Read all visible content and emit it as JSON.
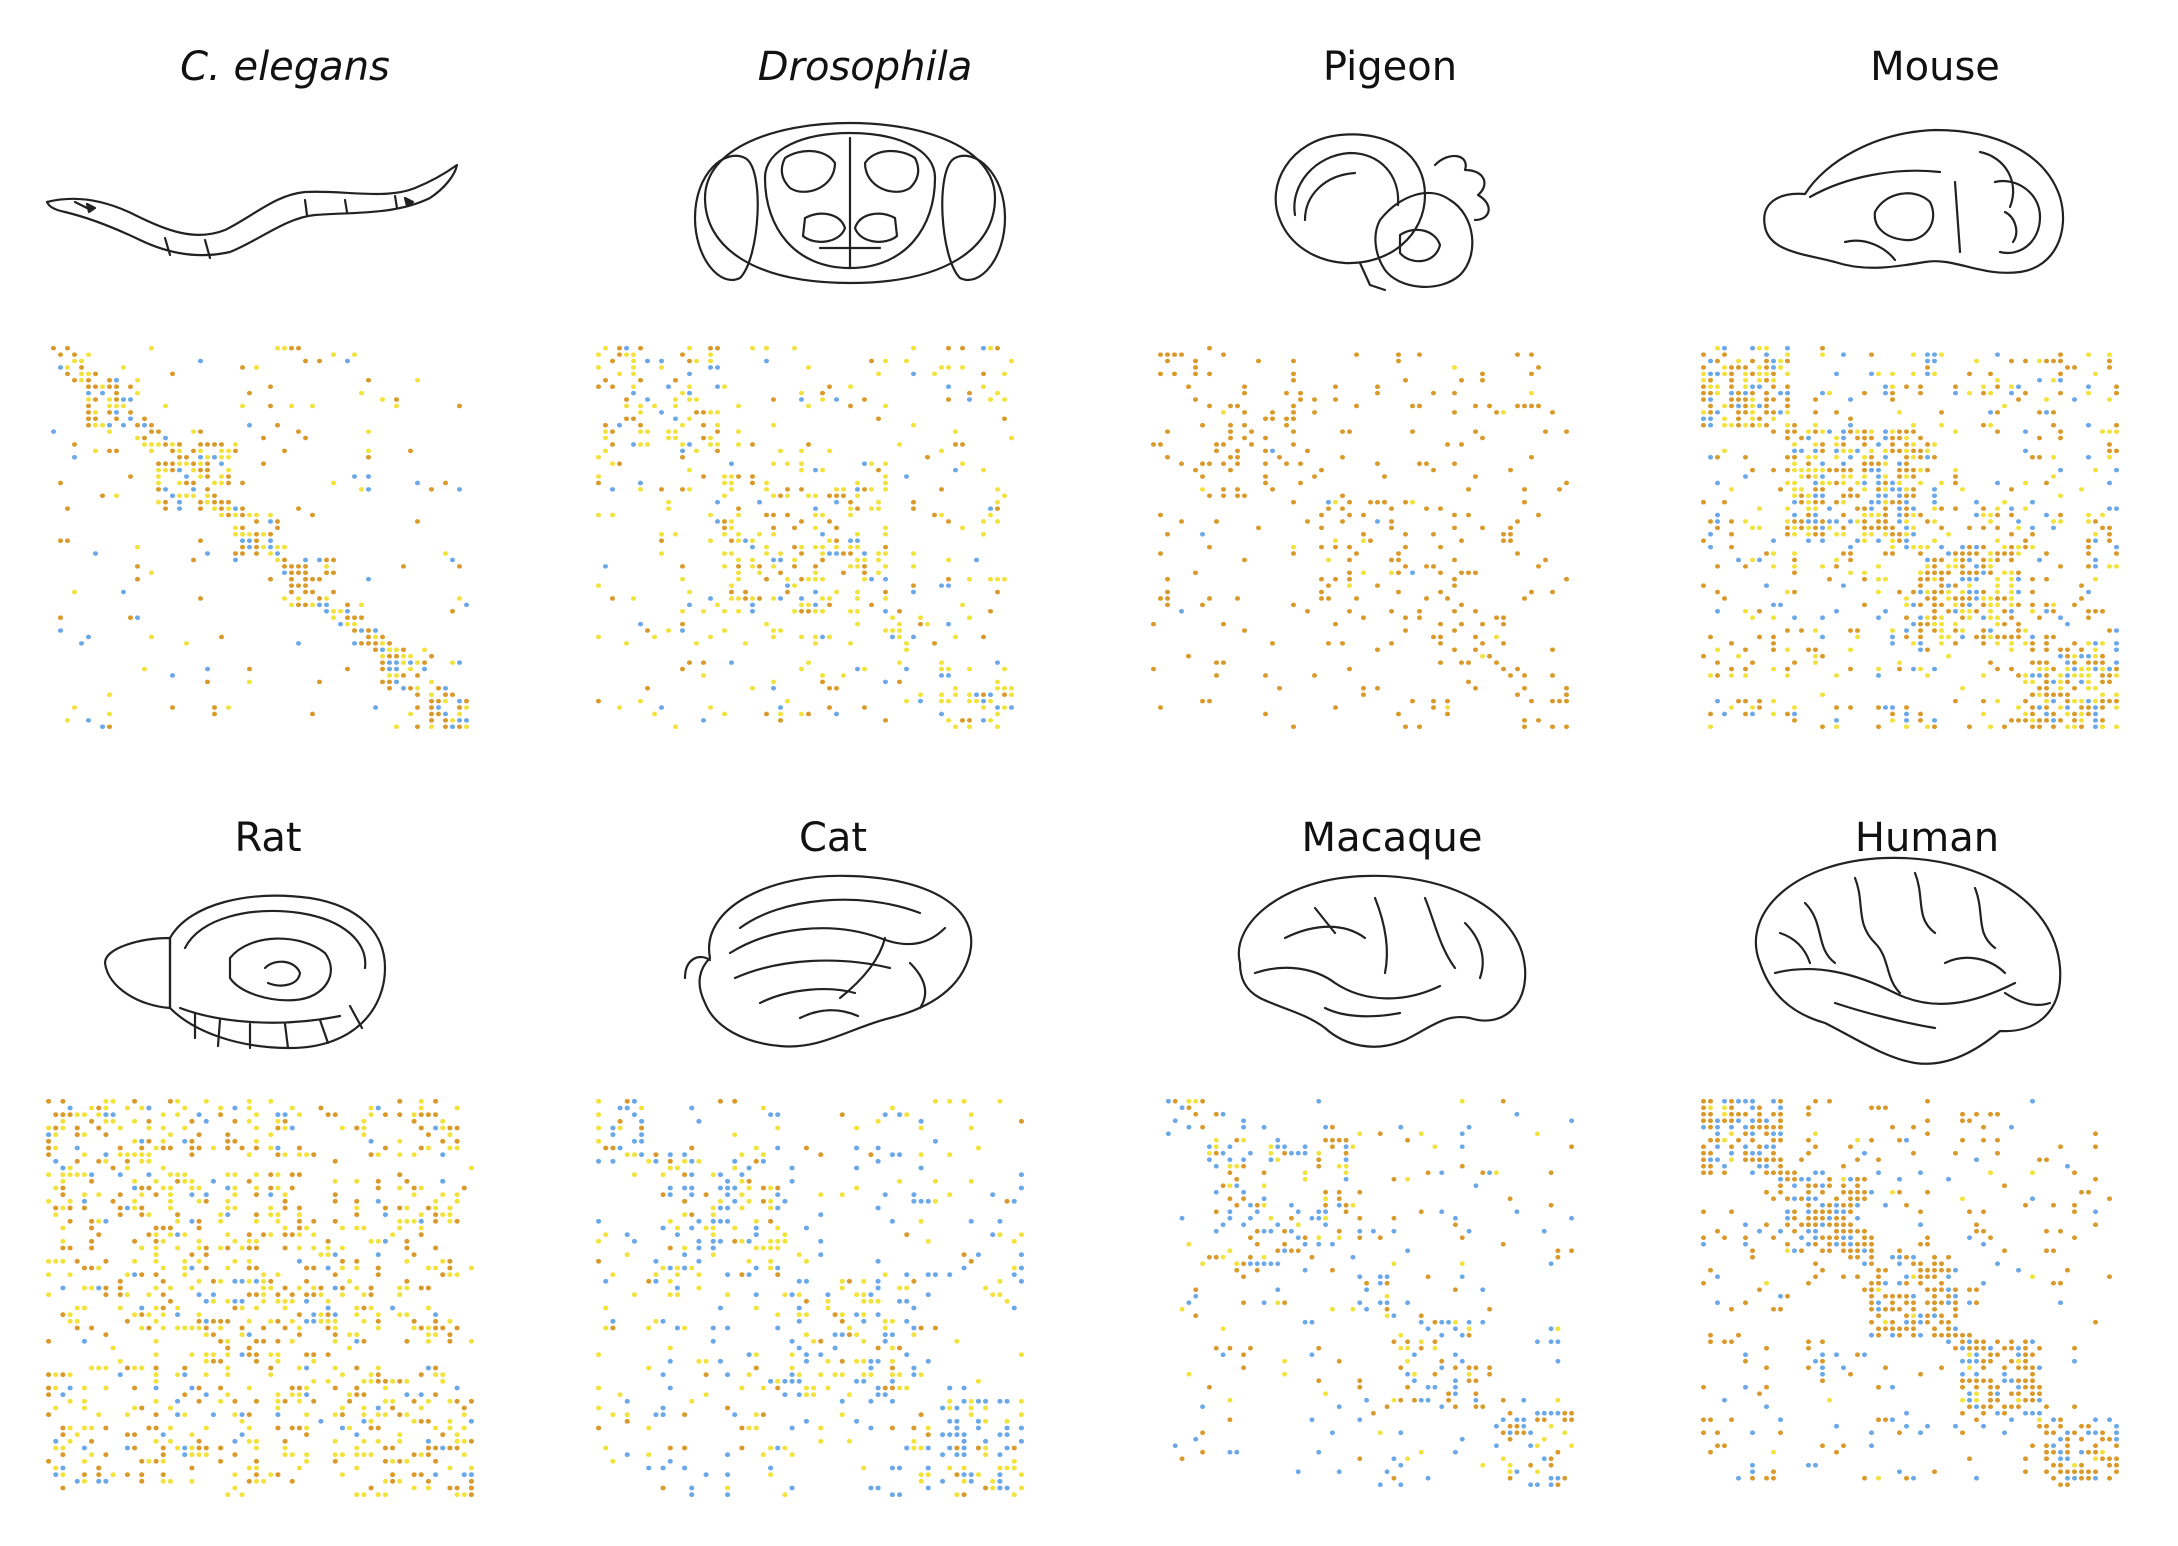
{
  "colors": {
    "orange": "#d99a2b",
    "yellow": "#f2e23c",
    "blue": "#6aa8e8"
  },
  "species": [
    {
      "id": "c-elegans",
      "label": "C. elegans",
      "italic": true,
      "icon": "worm-icon",
      "palette": [
        "orange",
        "yellow",
        "blue"
      ],
      "weights": [
        0.45,
        0.35,
        0.2
      ],
      "modules": [
        [
          0,
          0.06
        ],
        [
          0.08,
          0.14
        ],
        [
          0.25,
          0.18
        ],
        [
          0.43,
          0.12
        ],
        [
          0.55,
          0.14
        ],
        [
          0.71,
          0.07
        ],
        [
          0.78,
          0.12
        ],
        [
          0.9,
          0.1
        ]
      ],
      "in_density": 0.55,
      "bg_density": 0.04,
      "diag": true
    },
    {
      "id": "drosophila",
      "label": "Drosophila",
      "italic": true,
      "icon": "fly-brain-icon",
      "palette": [
        "yellow",
        "orange",
        "blue"
      ],
      "weights": [
        0.55,
        0.25,
        0.2
      ],
      "modules": [
        [
          0,
          0.3
        ],
        [
          0.3,
          0.4
        ],
        [
          0.7,
          0.12
        ],
        [
          0.82,
          0.18
        ]
      ],
      "in_density": 0.3,
      "bg_density": 0.1,
      "diag": false
    },
    {
      "id": "pigeon",
      "label": "Pigeon",
      "italic": false,
      "icon": "pigeon-brain-icon",
      "palette": [
        "orange",
        "yellow",
        "blue"
      ],
      "weights": [
        0.92,
        0.06,
        0.02
      ],
      "modules": [
        [
          0,
          0.12
        ],
        [
          0.12,
          0.28
        ],
        [
          0.4,
          0.3
        ],
        [
          0.7,
          0.15
        ],
        [
          0.88,
          0.12
        ]
      ],
      "in_density": 0.22,
      "bg_density": 0.05,
      "diag": false
    },
    {
      "id": "mouse",
      "label": "Mouse",
      "italic": false,
      "icon": "mouse-brain-icon",
      "palette": [
        "orange",
        "yellow",
        "blue"
      ],
      "weights": [
        0.45,
        0.35,
        0.2
      ],
      "modules": [
        [
          0,
          0.22
        ],
        [
          0.22,
          0.3
        ],
        [
          0.52,
          0.25
        ],
        [
          0.77,
          0.23
        ]
      ],
      "in_density": 0.65,
      "bg_density": 0.18,
      "diag": false
    },
    {
      "id": "rat",
      "label": "Rat",
      "italic": false,
      "icon": "rat-brain-icon",
      "palette": [
        "yellow",
        "orange",
        "blue"
      ],
      "weights": [
        0.5,
        0.38,
        0.12
      ],
      "modules": [
        [
          0,
          0.33
        ],
        [
          0.33,
          0.34
        ],
        [
          0.67,
          0.33
        ]
      ],
      "in_density": 0.35,
      "bg_density": 0.2,
      "diag": false
    },
    {
      "id": "cat",
      "label": "Cat",
      "italic": false,
      "icon": "cat-brain-icon",
      "palette": [
        "blue",
        "yellow",
        "orange"
      ],
      "weights": [
        0.45,
        0.4,
        0.15
      ],
      "modules": [
        [
          0,
          0.15
        ],
        [
          0.15,
          0.3
        ],
        [
          0.45,
          0.3
        ],
        [
          0.75,
          0.25
        ]
      ],
      "in_density": 0.35,
      "bg_density": 0.1,
      "diag": false
    },
    {
      "id": "macaque",
      "label": "Macaque",
      "italic": false,
      "icon": "macaque-brain-icon",
      "palette": [
        "blue",
        "orange",
        "yellow"
      ],
      "weights": [
        0.45,
        0.35,
        0.2
      ],
      "modules": [
        [
          0,
          0.1
        ],
        [
          0.1,
          0.35
        ],
        [
          0.45,
          0.12
        ],
        [
          0.57,
          0.23
        ],
        [
          0.8,
          0.2
        ]
      ],
      "in_density": 0.3,
      "bg_density": 0.05,
      "diag": false
    },
    {
      "id": "human",
      "label": "Human",
      "italic": false,
      "icon": "human-brain-icon",
      "palette": [
        "orange",
        "blue",
        "yellow"
      ],
      "weights": [
        0.65,
        0.3,
        0.05
      ],
      "modules": [
        [
          0,
          0.2
        ],
        [
          0.2,
          0.2
        ],
        [
          0.4,
          0.22
        ],
        [
          0.62,
          0.2
        ],
        [
          0.82,
          0.18
        ]
      ],
      "in_density": 0.65,
      "bg_density": 0.08,
      "diag": true
    }
  ]
}
